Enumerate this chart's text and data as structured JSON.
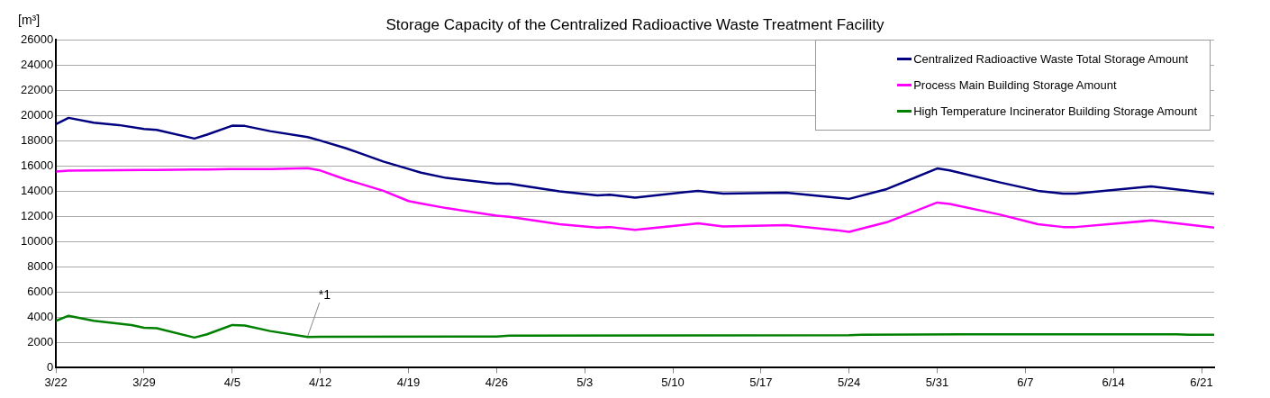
{
  "chart_data": {
    "type": "line",
    "title": "Storage Capacity of the Centralized Radioactive Waste Treatment Facility",
    "ylabel": "[m³]",
    "x": [
      "--03-22",
      "--03-23",
      "--03-25",
      "--03-27",
      "--03-29",
      "--03-30",
      "--04-02",
      "--04-03",
      "--04-05",
      "--04-06",
      "--04-08",
      "--04-11",
      "--04-12",
      "--04-14",
      "--04-15",
      "--04-17",
      "--04-19",
      "--04-20",
      "--04-22",
      "--04-26",
      "--04-27",
      "--05-01",
      "--05-04",
      "--05-05",
      "--05-07",
      "--05-12",
      "--05-14",
      "--05-19",
      "--05-23",
      "--05-24",
      "--05-27",
      "--05-31",
      "--06-01",
      "--06-05",
      "--06-08",
      "--06-10",
      "--06-11",
      "--06-17",
      "--06-22"
    ],
    "series": [
      {
        "name": "Centralized Radioactive Waste Total Storage Amount",
        "color": "#000080",
        "values": [
          19300,
          19800,
          19420,
          19230,
          18920,
          18850,
          18160,
          18470,
          19180,
          19160,
          18750,
          18280,
          18000,
          17400,
          17050,
          16340,
          15750,
          15460,
          15040,
          14590,
          14590,
          13970,
          13660,
          13710,
          13480,
          14020,
          13800,
          13870,
          13480,
          13380,
          14160,
          15790,
          15630,
          14680,
          14020,
          13800,
          13800,
          14370,
          13780
        ]
      },
      {
        "name": "Process Main Building Storage Amount",
        "color": "#ff00ff",
        "values": [
          15540,
          15610,
          15630,
          15660,
          15670,
          15680,
          15700,
          15710,
          15740,
          15740,
          15750,
          15820,
          15630,
          14920,
          14630,
          14020,
          13210,
          13020,
          12650,
          12050,
          11960,
          11370,
          11100,
          11150,
          10920,
          11440,
          11200,
          11300,
          10900,
          10770,
          11530,
          13090,
          12980,
          12130,
          11370,
          11150,
          11150,
          11670,
          11100
        ]
      },
      {
        "name": "High Temperature Incinerator Building Storage Amount",
        "color": "#008000",
        "x": [
          "--03-22",
          "--03-23",
          "--03-25",
          "--03-28",
          "--03-29",
          "--03-30",
          "--04-02",
          "--04-03",
          "--04-05",
          "--04-06",
          "--04-08",
          "--04-11",
          "--04-12",
          "--04-26",
          "--04-27",
          "--05-24",
          "--05-25",
          "--06-02",
          "--06-19",
          "--06-20",
          "--06-22"
        ],
        "values": [
          3720,
          4120,
          3720,
          3380,
          3170,
          3130,
          2390,
          2650,
          3390,
          3340,
          2910,
          2440,
          2450,
          2480,
          2540,
          2580,
          2620,
          2650,
          2650,
          2620,
          2620
        ]
      }
    ],
    "xlim": [
      "--03-22",
      "--06-22"
    ],
    "xticks": [
      {
        "value": "--03-22",
        "label": "3/22"
      },
      {
        "value": "--03-29",
        "label": "3/29"
      },
      {
        "value": "--04-05",
        "label": "4/5"
      },
      {
        "value": "--04-12",
        "label": "4/12"
      },
      {
        "value": "--04-19",
        "label": "4/19"
      },
      {
        "value": "--04-26",
        "label": "4/26"
      },
      {
        "value": "--05-03",
        "label": "5/3"
      },
      {
        "value": "--05-10",
        "label": "5/10"
      },
      {
        "value": "--05-17",
        "label": "5/17"
      },
      {
        "value": "--05-24",
        "label": "5/24"
      },
      {
        "value": "--05-31",
        "label": "5/31"
      },
      {
        "value": "--06-07",
        "label": "6/7"
      },
      {
        "value": "--06-14",
        "label": "6/14"
      },
      {
        "value": "--06-21",
        "label": "6/21"
      }
    ],
    "ylim": [
      0,
      26000
    ],
    "yticks": [
      0,
      2000,
      4000,
      6000,
      8000,
      10000,
      12000,
      14000,
      16000,
      18000,
      20000,
      22000,
      24000,
      26000
    ],
    "grid": "y",
    "legend": "top right",
    "marker": "none",
    "line_style": "solid",
    "annotations": [
      {
        "text": "*1",
        "x": "--04-11",
        "y": 2440
      }
    ]
  }
}
